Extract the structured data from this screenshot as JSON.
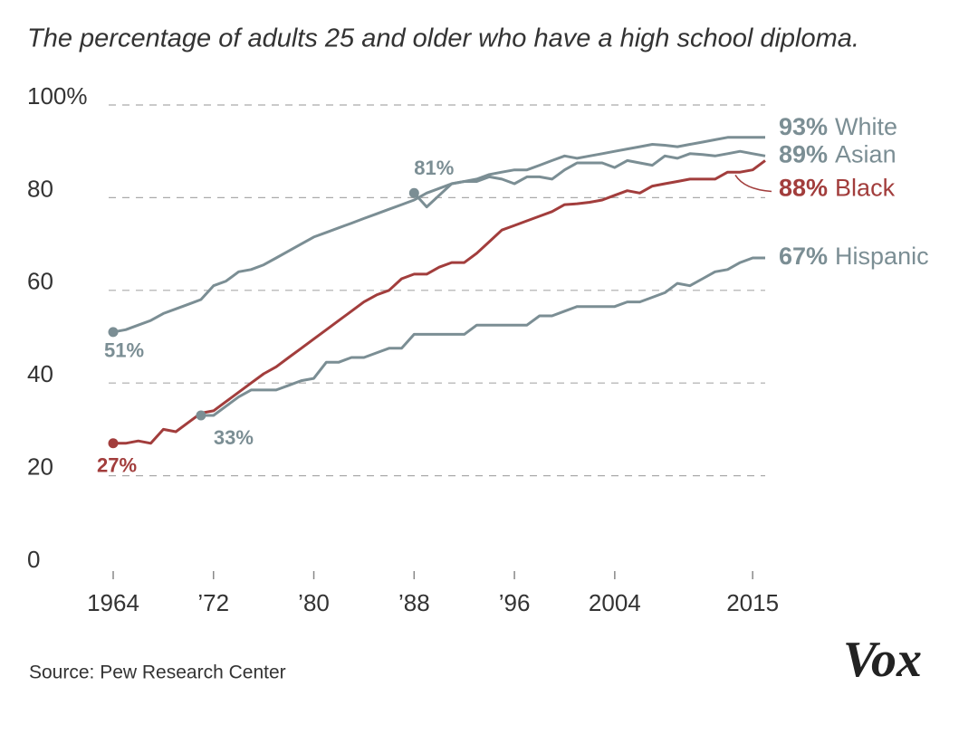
{
  "chart_data": {
    "type": "line",
    "title": "The percentage of adults 25 and older who have a high school diploma.",
    "source": "Source: Pew Research Center",
    "brand": "Vox",
    "x": [
      1964,
      1965,
      1966,
      1967,
      1968,
      1969,
      1970,
      1971,
      1972,
      1973,
      1974,
      1975,
      1976,
      1977,
      1978,
      1979,
      1980,
      1981,
      1982,
      1983,
      1984,
      1985,
      1986,
      1987,
      1988,
      1989,
      1990,
      1991,
      1992,
      1993,
      1994,
      1995,
      1996,
      1997,
      1998,
      1999,
      2000,
      2001,
      2002,
      2003,
      2004,
      2005,
      2006,
      2007,
      2008,
      2009,
      2010,
      2011,
      2012,
      2013,
      2014,
      2015,
      2016
    ],
    "xlim": [
      1964,
      2016
    ],
    "xticks": [
      1964,
      {
        "value": 1972,
        "label": "’72"
      },
      {
        "value": 1980,
        "label": "’80"
      },
      {
        "value": 1988,
        "label": "’88"
      },
      {
        "value": 1996,
        "label": "’96"
      },
      2004,
      2015
    ],
    "ylim": [
      0,
      100
    ],
    "yticks": [
      0,
      20,
      40,
      60,
      {
        "value": 80,
        "label": "80"
      },
      {
        "value": 100,
        "label": "100%"
      }
    ],
    "grid": true,
    "series": [
      {
        "name": "White",
        "color": "#7b8e94",
        "start_label": "51%",
        "end_label": "93%",
        "values": [
          51,
          51.5,
          52.5,
          53.5,
          55,
          56,
          57,
          58,
          61,
          62,
          64,
          64.5,
          65.5,
          67,
          68.5,
          70,
          71.5,
          72.5,
          73.5,
          74.5,
          75.5,
          76.5,
          77.5,
          78.5,
          79.5,
          81,
          82,
          83,
          83.5,
          84,
          85,
          85.5,
          86,
          86,
          87,
          88,
          89,
          88.5,
          89,
          89.5,
          90,
          90.5,
          91,
          91.5,
          91.3,
          91,
          91.5,
          92,
          92.5,
          93,
          93,
          93,
          93
        ]
      },
      {
        "name": "Asian",
        "color": "#7b8e94",
        "start_label": "81%",
        "end_label": "89%",
        "values": [
          null,
          null,
          null,
          null,
          null,
          null,
          null,
          null,
          null,
          null,
          null,
          null,
          null,
          null,
          null,
          null,
          null,
          null,
          null,
          null,
          null,
          null,
          null,
          null,
          81,
          78,
          80.5,
          83,
          83.5,
          83.5,
          84.5,
          84,
          83,
          84.5,
          84.5,
          84,
          86,
          87.5,
          87.5,
          87.5,
          86.5,
          88,
          87.5,
          87,
          89,
          88.5,
          89.5,
          89.3,
          89,
          89.5,
          90,
          89.5,
          89
        ]
      },
      {
        "name": "Black",
        "color": "#a23d3c",
        "start_label": "27%",
        "end_label": "88%",
        "values": [
          27,
          27,
          27.5,
          27,
          30,
          29.5,
          31.5,
          33.5,
          34,
          36,
          38,
          40,
          42,
          43.5,
          45.5,
          47.5,
          49.5,
          51.5,
          53.5,
          55.5,
          57.5,
          59,
          60,
          62.5,
          63.5,
          63.5,
          65,
          66,
          66,
          68,
          70.5,
          73,
          74,
          75,
          76,
          77,
          78.5,
          78.7,
          79,
          79.5,
          80.5,
          81.5,
          81,
          82.5,
          83,
          83.5,
          84,
          84,
          84,
          85.5,
          85.5,
          86,
          88
        ]
      },
      {
        "name": "Hispanic",
        "color": "#7b8e94",
        "start_label": "33%",
        "end_label": "67%",
        "values": [
          null,
          null,
          null,
          null,
          null,
          null,
          null,
          33,
          33,
          35,
          37,
          38.5,
          38.5,
          38.5,
          39.5,
          40.5,
          41,
          44.5,
          44.5,
          45.5,
          45.5,
          46.5,
          47.5,
          47.5,
          50.5,
          50.5,
          50.5,
          50.5,
          50.5,
          52.5,
          52.5,
          52.5,
          52.5,
          52.5,
          54.5,
          54.5,
          55.5,
          56.5,
          56.5,
          56.5,
          56.5,
          57.5,
          57.5,
          58.5,
          59.5,
          61.5,
          61,
          62.5,
          64,
          64.5,
          66,
          67,
          67
        ]
      }
    ]
  }
}
